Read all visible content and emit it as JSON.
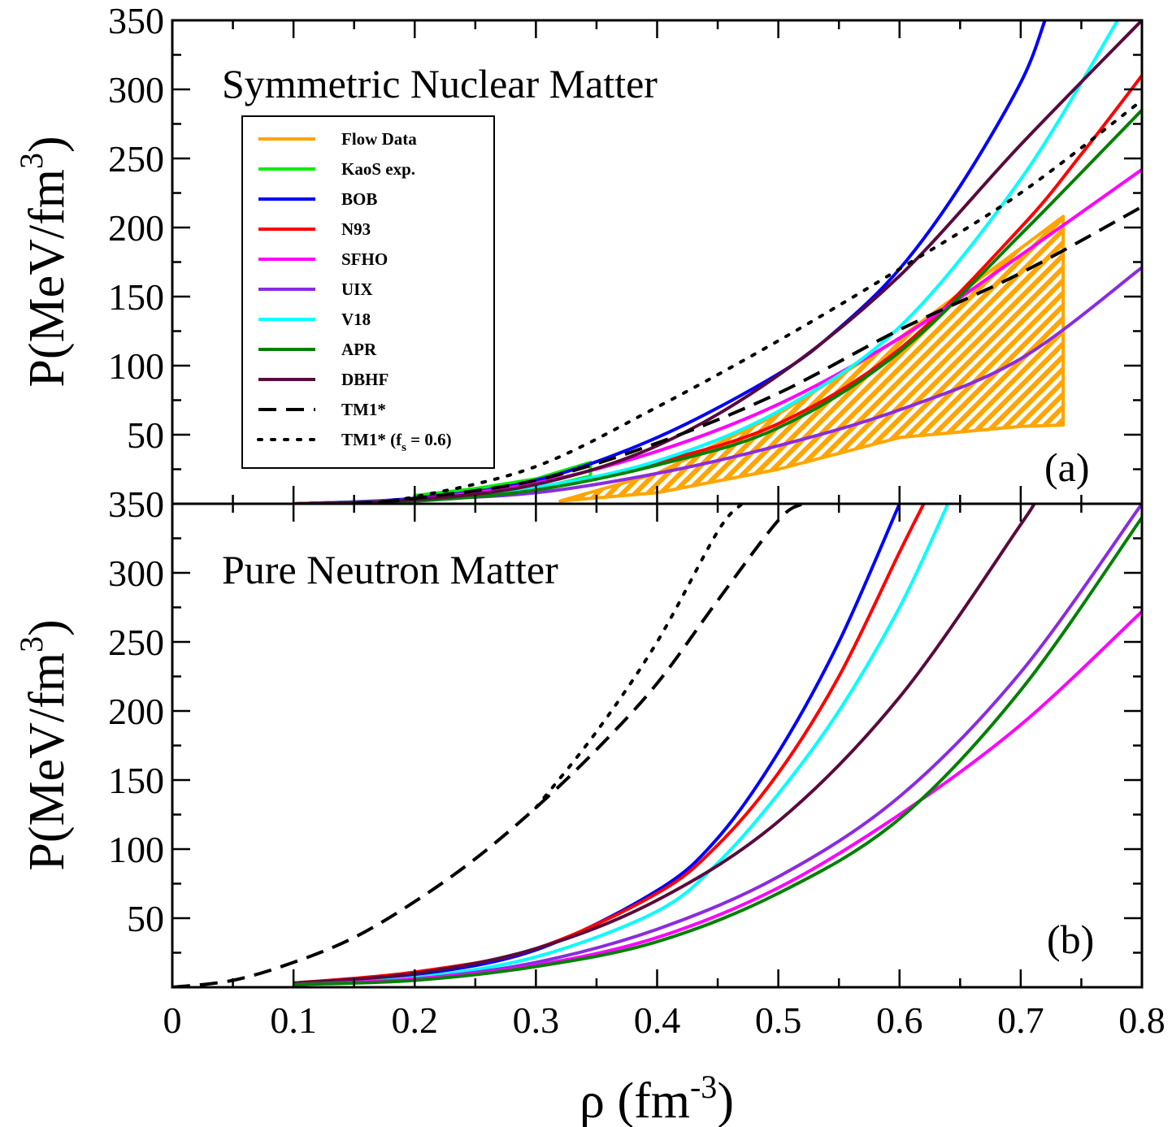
{
  "figure": {
    "xlabel_main": "ρ (fm",
    "xlabel_sup": "-3",
    "xlabel_close": ")",
    "ylabel_main": "P(MeV/fm",
    "ylabel_sup": "3",
    "ylabel_close": ")"
  },
  "legend": {
    "items": [
      {
        "label": "Flow Data",
        "color": "#FFA500",
        "style": "solid"
      },
      {
        "label": "KaoS exp.",
        "color": "#00EE00",
        "style": "solid"
      },
      {
        "label": "BOB",
        "color": "#0000FF",
        "style": "solid"
      },
      {
        "label": "N93",
        "color": "#FF0000",
        "style": "solid"
      },
      {
        "label": "SFHO",
        "color": "#FF00FF",
        "style": "solid"
      },
      {
        "label": "UIX",
        "color": "#8A2BE2",
        "style": "solid"
      },
      {
        "label": "V18",
        "color": "#00FFFF",
        "style": "solid"
      },
      {
        "label": "APR",
        "color": "#008000",
        "style": "solid"
      },
      {
        "label": "DBHF",
        "color": "#5A0A3C",
        "style": "solid"
      },
      {
        "label": "TM1*",
        "color": "#000000",
        "style": "dashed"
      },
      {
        "label": "TM1* (f",
        "color": "#000000",
        "style": "dotted",
        "sub": "s",
        "suffix": " = 0.6)"
      }
    ]
  },
  "chart_data": [
    {
      "type": "line",
      "panel": "a",
      "title": "Symmetric Nuclear Matter",
      "tag": "(a)",
      "xlim": [
        0,
        0.8
      ],
      "ylim": [
        0,
        350
      ],
      "xticks": [
        0,
        0.1,
        0.2,
        0.3,
        0.4,
        0.5,
        0.6,
        0.7,
        0.8
      ],
      "xtick_labels": [
        "0",
        "0.1",
        "0.2",
        "0.3",
        "0.4",
        "0.5",
        "0.6",
        "0.7",
        "0.8"
      ],
      "yticks": [
        50,
        100,
        150,
        200,
        250,
        300,
        350
      ],
      "ytick_labels": [
        "50",
        "100",
        "150",
        "200",
        "250",
        "300",
        "350"
      ],
      "bands": [
        {
          "name": "Flow Data",
          "color": "#FFA500",
          "upper": {
            "x": [
              0.32,
              0.4,
              0.5,
              0.6,
              0.7,
              0.735
            ],
            "y": [
              2,
              22,
              65,
              120,
              185,
              208
            ]
          },
          "lower": {
            "x": [
              0.32,
              0.4,
              0.5,
              0.6,
              0.7,
              0.735
            ],
            "y": [
              2,
              8,
              25,
              48,
              56,
              57
            ]
          }
        },
        {
          "name": "KaoS exp.",
          "color": "#00EE00",
          "upper": {
            "x": [
              0.2,
              0.25,
              0.3,
              0.345
            ],
            "y": [
              6,
              11,
              18,
              30
            ]
          },
          "lower": {
            "x": [
              0.2,
              0.25,
              0.3,
              0.345
            ],
            "y": [
              3,
              6,
              11,
              20
            ]
          }
        }
      ],
      "series": [
        {
          "name": "BOB",
          "color": "#0000FF",
          "style": "solid",
          "x": [
            0.1,
            0.2,
            0.3,
            0.4,
            0.5,
            0.55,
            0.6,
            0.65,
            0.7,
            0.72
          ],
          "y": [
            0,
            4,
            17,
            48,
            94,
            127,
            170,
            230,
            305,
            350
          ]
        },
        {
          "name": "N93",
          "color": "#FF0000",
          "style": "solid",
          "x": [
            0.1,
            0.2,
            0.3,
            0.4,
            0.5,
            0.6,
            0.7,
            0.75,
            0.8
          ],
          "y": [
            0,
            3,
            11,
            30,
            58,
            112,
            200,
            253,
            310
          ]
        },
        {
          "name": "SFHO",
          "color": "#FF00FF",
          "style": "solid",
          "x": [
            0.2,
            0.3,
            0.4,
            0.5,
            0.6,
            0.7,
            0.8
          ],
          "y": [
            3,
            15,
            38,
            72,
            120,
            180,
            242
          ]
        },
        {
          "name": "UIX",
          "color": "#8A2BE2",
          "style": "solid",
          "x": [
            0.1,
            0.2,
            0.3,
            0.4,
            0.5,
            0.6,
            0.7,
            0.8
          ],
          "y": [
            0,
            3,
            8,
            22,
            42,
            68,
            105,
            171
          ]
        },
        {
          "name": "V18",
          "color": "#00FFFF",
          "style": "solid",
          "x": [
            0.1,
            0.2,
            0.3,
            0.4,
            0.5,
            0.6,
            0.7,
            0.78
          ],
          "y": [
            0,
            3,
            12,
            31,
            67,
            128,
            235,
            350
          ]
        },
        {
          "name": "APR",
          "color": "#008000",
          "style": "solid",
          "x": [
            0.1,
            0.2,
            0.3,
            0.4,
            0.5,
            0.6,
            0.7,
            0.8
          ],
          "y": [
            0,
            2,
            10,
            28,
            55,
            110,
            195,
            285
          ]
        },
        {
          "name": "DBHF",
          "color": "#5A0A3C",
          "style": "solid",
          "x": [
            0.1,
            0.2,
            0.3,
            0.4,
            0.5,
            0.6,
            0.7,
            0.8
          ],
          "y": [
            0,
            3,
            14,
            42,
            93,
            165,
            260,
            350
          ]
        },
        {
          "name": "TM1*",
          "color": "#000000",
          "style": "dashed",
          "x": [
            0.15,
            0.2,
            0.3,
            0.4,
            0.5,
            0.6,
            0.7,
            0.8
          ],
          "y": [
            0,
            4,
            17,
            44,
            80,
            126,
            167,
            215
          ]
        },
        {
          "name": "TM1* (fs = 0.6)",
          "color": "#000000",
          "style": "dotted",
          "x": [
            0.15,
            0.2,
            0.3,
            0.4,
            0.5,
            0.6,
            0.7,
            0.8
          ],
          "y": [
            0,
            5,
            27,
            70,
            118,
            170,
            225,
            292
          ]
        }
      ]
    },
    {
      "type": "line",
      "panel": "b",
      "title": "Pure Neutron Matter",
      "tag": "(b)",
      "xlim": [
        0,
        0.8
      ],
      "ylim": [
        0,
        350
      ],
      "xticks": [
        0,
        0.1,
        0.2,
        0.3,
        0.4,
        0.5,
        0.6,
        0.7,
        0.8
      ],
      "xtick_labels": [
        "0",
        "0.1",
        "0.2",
        "0.3",
        "0.4",
        "0.5",
        "0.6",
        "0.7",
        "0.8"
      ],
      "yticks": [
        50,
        100,
        150,
        200,
        250,
        300,
        350
      ],
      "ytick_labels": [
        "50",
        "100",
        "150",
        "200",
        "250",
        "300",
        "350"
      ],
      "series": [
        {
          "name": "BOB",
          "color": "#0000FF",
          "style": "solid",
          "x": [
            0.1,
            0.2,
            0.3,
            0.4,
            0.45,
            0.5,
            0.55,
            0.6
          ],
          "y": [
            3,
            9,
            27,
            70,
            108,
            170,
            250,
            350
          ]
        },
        {
          "name": "N93",
          "color": "#FF0000",
          "style": "solid",
          "x": [
            0.1,
            0.2,
            0.3,
            0.4,
            0.45,
            0.5,
            0.55,
            0.6,
            0.62
          ],
          "y": [
            3,
            11,
            28,
            68,
            103,
            155,
            225,
            315,
            350
          ]
        },
        {
          "name": "V18",
          "color": "#00FFFF",
          "style": "solid",
          "x": [
            0.1,
            0.2,
            0.3,
            0.4,
            0.45,
            0.5,
            0.55,
            0.6,
            0.64
          ],
          "y": [
            2,
            7,
            22,
            55,
            90,
            140,
            200,
            275,
            350
          ]
        },
        {
          "name": "DBHF",
          "color": "#5A0A3C",
          "style": "solid",
          "x": [
            0.1,
            0.2,
            0.3,
            0.4,
            0.5,
            0.6,
            0.7,
            0.71
          ],
          "y": [
            3,
            10,
            28,
            63,
            120,
            210,
            335,
            350
          ]
        },
        {
          "name": "UIX",
          "color": "#8A2BE2",
          "style": "solid",
          "x": [
            0.1,
            0.2,
            0.3,
            0.4,
            0.5,
            0.6,
            0.7,
            0.8
          ],
          "y": [
            2,
            6,
            18,
            42,
            80,
            138,
            228,
            350
          ]
        },
        {
          "name": "SFHO",
          "color": "#FF00FF",
          "style": "solid",
          "x": [
            0.1,
            0.2,
            0.3,
            0.4,
            0.5,
            0.6,
            0.7,
            0.8
          ],
          "y": [
            2,
            6,
            16,
            36,
            72,
            125,
            190,
            272
          ]
        },
        {
          "name": "APR",
          "color": "#008000",
          "style": "solid",
          "x": [
            0.1,
            0.2,
            0.3,
            0.4,
            0.5,
            0.6,
            0.7,
            0.8
          ],
          "y": [
            2,
            5,
            15,
            33,
            68,
            122,
            215,
            340
          ]
        },
        {
          "name": "TM1*",
          "color": "#000000",
          "style": "dashed",
          "x": [
            0,
            0.05,
            0.1,
            0.15,
            0.2,
            0.25,
            0.3,
            0.35,
            0.4,
            0.45,
            0.5,
            0.52
          ],
          "y": [
            0,
            5,
            18,
            36,
            62,
            93,
            130,
            172,
            220,
            280,
            338,
            350
          ]
        },
        {
          "name": "TM1* (fs = 0.6)",
          "color": "#000000",
          "style": "dotted",
          "x": [
            0.3,
            0.35,
            0.4,
            0.45,
            0.47
          ],
          "y": [
            130,
            185,
            250,
            330,
            350
          ]
        }
      ]
    }
  ]
}
